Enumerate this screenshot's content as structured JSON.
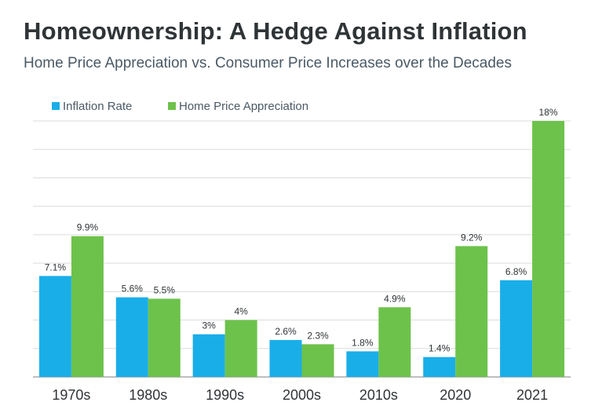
{
  "header": {
    "title": "Homeownership: A Hedge Against Inflation",
    "subtitle": "Home Price Appreciation vs. Consumer Price Increases over the Decades"
  },
  "colors": {
    "inflation": "#1aaee9",
    "home_price": "#6dc24b",
    "grid": "#dcdcdc",
    "axis": "#999999"
  },
  "chart_data": {
    "type": "bar",
    "categories": [
      "1970s",
      "1980s",
      "1990s",
      "2000s",
      "2010s",
      "2020",
      "2021"
    ],
    "series": [
      {
        "name": "Inflation Rate",
        "values": [
          7.1,
          5.6,
          3,
          2.6,
          1.8,
          1.4,
          6.8
        ],
        "labels": [
          "7.1%",
          "5.6%",
          "3%",
          "2.6%",
          "1.8%",
          "1.4%",
          "6.8%"
        ]
      },
      {
        "name": "Home Price Appreciation",
        "values": [
          9.9,
          5.5,
          4,
          2.3,
          4.9,
          9.2,
          18
        ],
        "labels": [
          "9.9%",
          "5.5%",
          "4%",
          "2.3%",
          "4.9%",
          "9.2%",
          "18%"
        ]
      }
    ],
    "ylim": [
      0,
      18
    ],
    "grid": true,
    "legend": "top-left"
  }
}
